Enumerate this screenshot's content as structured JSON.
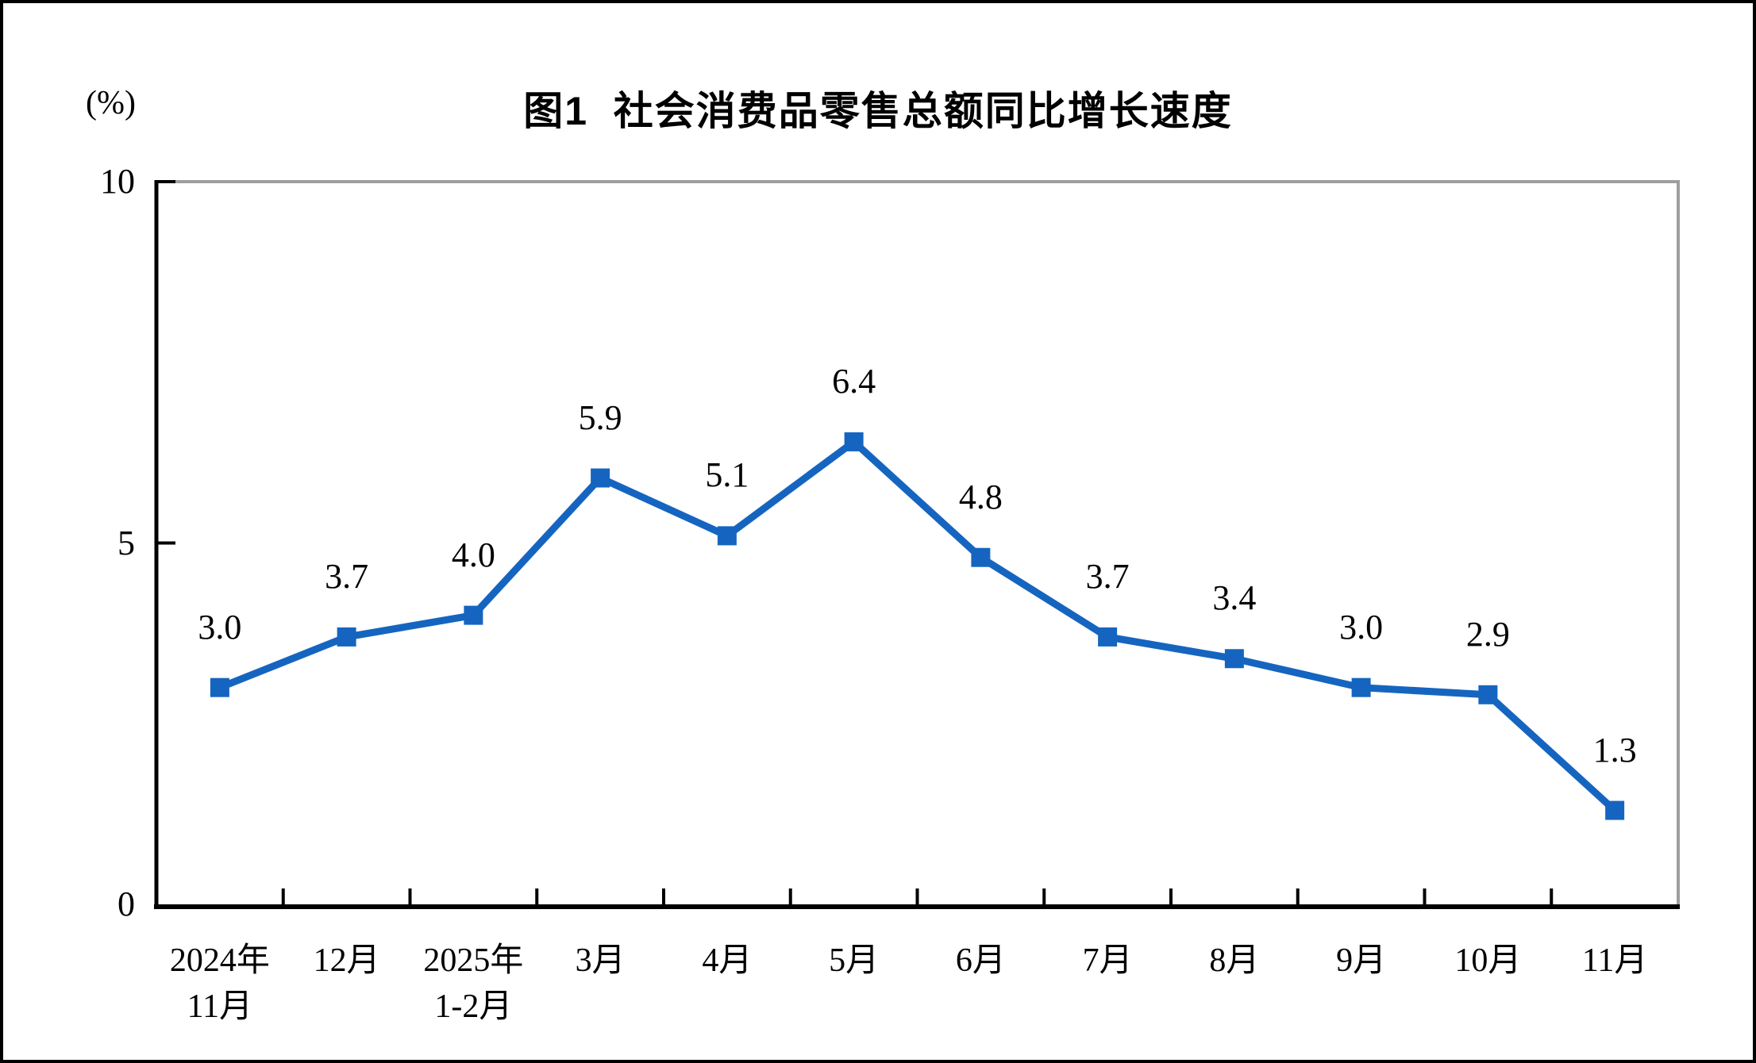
{
  "chart_data": {
    "type": "line",
    "title": "图1  社会消费品零售总额同比增长速度",
    "unit": "(%)",
    "categories": [
      "2024年\n11月",
      "12月",
      "2025年\n1-2月",
      "3月",
      "4月",
      "5月",
      "6月",
      "7月",
      "8月",
      "9月",
      "10月",
      "11月"
    ],
    "values": [
      3.0,
      3.7,
      4.0,
      5.9,
      5.1,
      6.4,
      4.8,
      3.7,
      3.4,
      3.0,
      2.9,
      1.3
    ],
    "data_labels": [
      "3.0",
      "3.7",
      "4.0",
      "5.9",
      "5.1",
      "6.4",
      "4.8",
      "3.7",
      "3.4",
      "3.0",
      "2.9",
      "1.3"
    ],
    "ylim": [
      0,
      10
    ],
    "yticks": [
      "0",
      "5",
      "10"
    ],
    "xlabel": "",
    "ylabel": "(%)",
    "grid": false,
    "legend": "none",
    "marker": "square",
    "line_color": "#1565c0",
    "axis_color": "#000000",
    "plot_border_color": "#9e9e9e",
    "label_color": "#000000"
  }
}
